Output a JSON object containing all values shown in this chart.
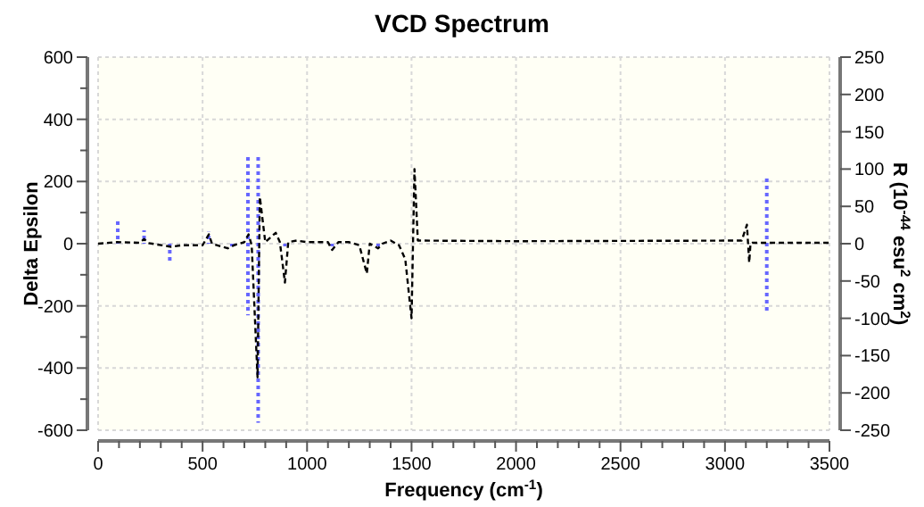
{
  "chart_data": {
    "type": "line",
    "title": "VCD Spectrum",
    "xlabel": "Frequency (cm$^{-1}$)",
    "ylabel": "Delta Epsilon",
    "y2label": "R (10$^{-44}$ esu$^{2}$ cm$^{2}$)",
    "xlim": [
      0,
      3500
    ],
    "xticks": [
      0,
      {
        "value": 100,
        "label": null
      },
      {
        "value": 200,
        "label": null
      },
      {
        "value": 300,
        "label": null
      },
      {
        "value": 400,
        "label": null
      },
      500,
      {
        "value": 600,
        "label": null
      },
      {
        "value": 700,
        "label": null
      },
      {
        "value": 800,
        "label": null
      },
      {
        "value": 900,
        "label": null
      },
      1000,
      {
        "value": 1100,
        "label": null
      },
      {
        "value": 1200,
        "label": null
      },
      {
        "value": 1300,
        "label": null
      },
      {
        "value": 1400,
        "label": null
      },
      1500,
      {
        "value": 1600,
        "label": null
      },
      {
        "value": 1700,
        "label": null
      },
      {
        "value": 1800,
        "label": null
      },
      {
        "value": 1900,
        "label": null
      },
      2000,
      {
        "value": 2100,
        "label": null
      },
      {
        "value": 2200,
        "label": null
      },
      {
        "value": 2300,
        "label": null
      },
      {
        "value": 2400,
        "label": null
      },
      2500,
      {
        "value": 2600,
        "label": null
      },
      {
        "value": 2700,
        "label": null
      },
      {
        "value": 2800,
        "label": null
      },
      {
        "value": 2900,
        "label": null
      },
      3000,
      {
        "value": 3100,
        "label": null
      },
      {
        "value": 3200,
        "label": null
      },
      {
        "value": 3300,
        "label": null
      },
      {
        "value": 3400,
        "label": null
      },
      3500
    ],
    "ylim": [
      -600,
      600
    ],
    "yticks": [
      -600,
      {
        "value": -500,
        "label": null
      },
      -400,
      {
        "value": -300,
        "label": null
      },
      -200,
      {
        "value": -100,
        "label": null
      },
      0,
      {
        "value": 100,
        "label": null
      },
      200,
      {
        "value": 300,
        "label": null
      },
      400,
      {
        "value": 500,
        "label": null
      },
      600
    ],
    "y2lim": [
      -250,
      250
    ],
    "y2ticks": [
      -250,
      -200,
      -150,
      -100,
      -50,
      0,
      50,
      100,
      150,
      200,
      250
    ],
    "grid": true,
    "series": [
      {
        "color": "#000000",
        "line_style": "dashed",
        "x": [
          0,
          90,
          200,
          220,
          240,
          350,
          400,
          500,
          530,
          545,
          620,
          650,
          700,
          720,
          735,
          763,
          774,
          800,
          850,
          870,
          894,
          910,
          950,
          1000,
          1100,
          1120,
          1150,
          1200,
          1250,
          1286,
          1300,
          1340,
          1360,
          1400,
          1440,
          1470,
          1500,
          1514,
          1530,
          2000,
          3080,
          3105,
          3116,
          3122,
          3130,
          3500
        ],
        "values": [
          0,
          5,
          3,
          15,
          2,
          -10,
          -5,
          -5,
          30,
          0,
          -15,
          -5,
          5,
          30,
          -5,
          -430,
          150,
          5,
          35,
          5,
          -125,
          5,
          10,
          5,
          5,
          -20,
          5,
          5,
          -5,
          -96,
          0,
          -15,
          0,
          10,
          -5,
          -50,
          -240,
          240,
          10,
          8,
          10,
          61,
          -61,
          0,
          3,
          3
        ]
      },
      {
        "type": "bar",
        "axis": "y2",
        "color": "#6666ff",
        "line_style": "dotted",
        "x": [
          94,
          220,
          529,
          717,
          766,
          3200
        ],
        "values": [
          30,
          18,
          16,
          116,
          118,
          90
        ]
      },
      {
        "type": "bar",
        "axis": "y2",
        "color": "#6666ff",
        "line_style": "dotted",
        "x": [
          343,
          640,
          717,
          766,
          894,
          1120,
          1340,
          3200
        ],
        "values": [
          -24,
          -5,
          -96,
          -240,
          -6,
          -8,
          -8,
          -93
        ]
      }
    ]
  }
}
